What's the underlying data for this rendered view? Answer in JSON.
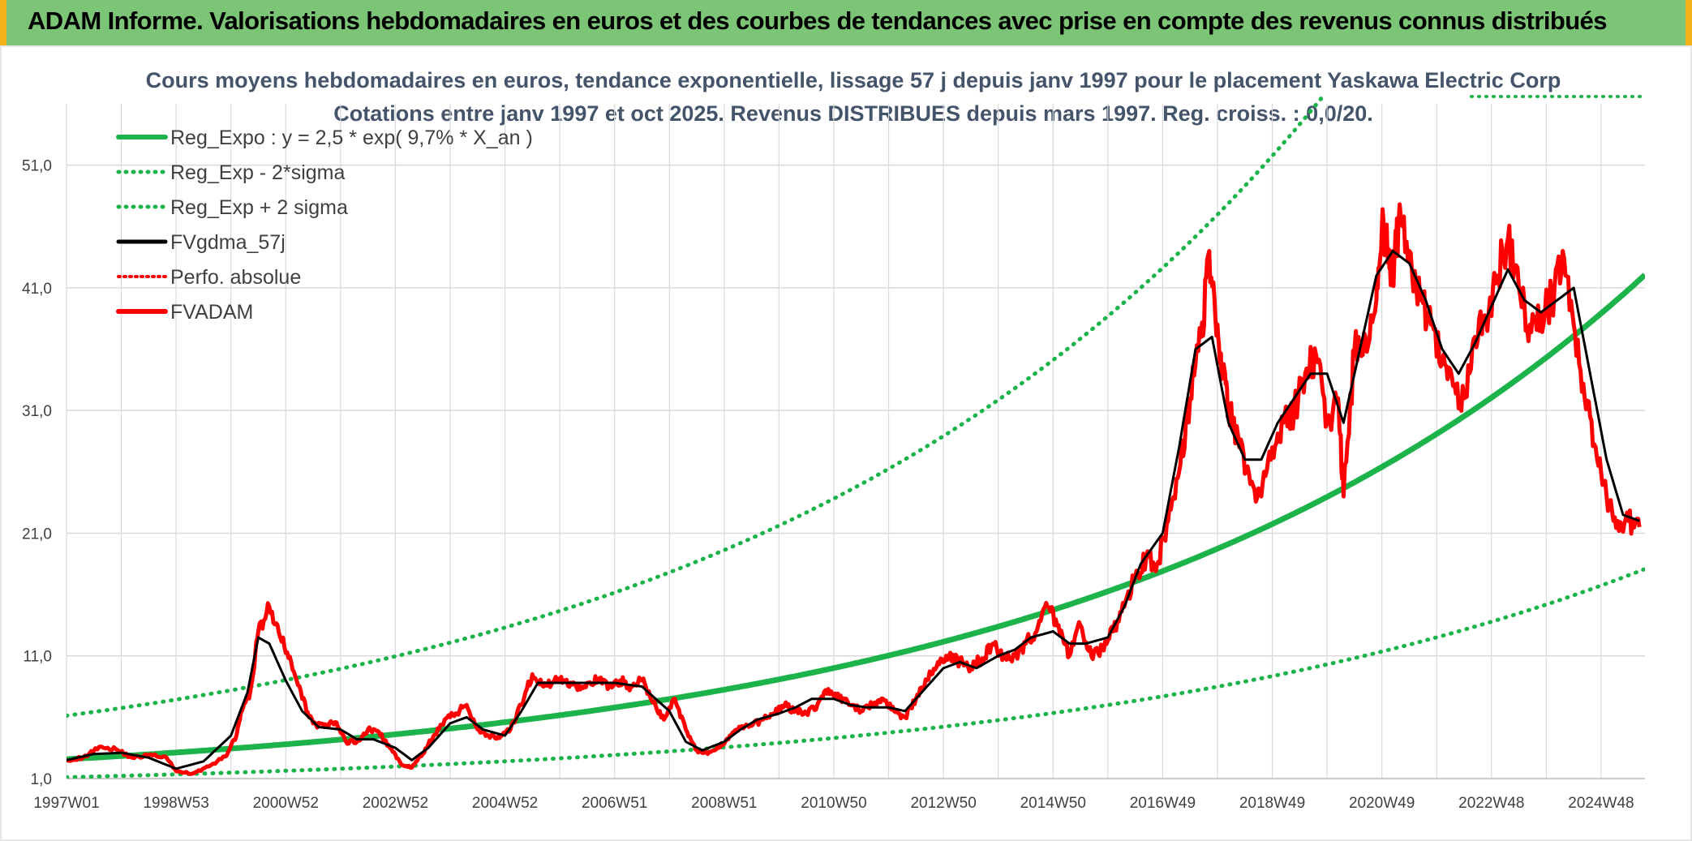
{
  "header": {
    "title": "ADAM Informe. Valorisations hebdomadaires en euros et des courbes de tendances avec prise en compte des revenus connus distribués"
  },
  "colors": {
    "banner": "#7cc576",
    "trend": "#1db34b",
    "band": "#1db34b",
    "smooth": "#000000",
    "price": "#ff0000",
    "title": "#44546a",
    "grid": "#d9d9d9"
  },
  "chart_data": {
    "type": "line",
    "title_lines": [
      "Cours moyens hebdomadaires en euros, tendance exponentielle, lissage 57 j depuis janv 1997 pour le placement Yaskawa Electric Corp",
      "Cotations entre janv 1997 et oct 2025. Revenus DISTRIBUES depuis mars 1997. Reg. croiss. : 0,0/20."
    ],
    "y_ticks": [
      "1,0",
      "11,0",
      "21,0",
      "31,0",
      "41,0",
      "51,0"
    ],
    "ylim": [
      1,
      56
    ],
    "x_ticks": [
      "1997W01",
      "1998W53",
      "2000W52",
      "2002W52",
      "2004W52",
      "2006W51",
      "2008W51",
      "2010W50",
      "2012W50",
      "2014W50",
      "2016W49",
      "2018W49",
      "2020W49",
      "2022W48",
      "2024W48"
    ],
    "x_range_years": [
      1997.0,
      2025.8
    ],
    "x_tick_years": [
      1997.0,
      1999.0,
      2001.0,
      2003.0,
      2005.0,
      2007.0,
      2009.0,
      2011.0,
      2013.0,
      2015.0,
      2017.0,
      2019.0,
      2021.0,
      2023.0,
      2025.0
    ],
    "legend": [
      {
        "label": "Reg_Expo : y = 2,5 * exp( 9,7% *  X_an )",
        "style": "solid-green"
      },
      {
        "label": "Reg_Exp - 2*sigma",
        "style": "dotted-green"
      },
      {
        "label": "Reg_Exp + 2 sigma",
        "style": "dotted-green"
      },
      {
        "label": "FVgdma_57j",
        "style": "solid-black"
      },
      {
        "label": "Perfo. absolue",
        "style": "dotted-red"
      },
      {
        "label": "FVADAM",
        "style": "solid-red"
      }
    ],
    "grid": true,
    "regression": {
      "a": 2.5,
      "rate": 0.097,
      "minus_2sigma_factor": 0.43,
      "plus_2sigma_factor": 2.38
    },
    "series": [
      {
        "name": "FVADAM",
        "x": [
          1997.0,
          1997.3,
          1997.6,
          1997.9,
          1998.2,
          1998.5,
          1998.8,
          1999.0,
          1999.3,
          1999.6,
          1999.9,
          2000.1,
          2000.2,
          2000.35,
          2000.5,
          2000.7,
          2000.9,
          2001.1,
          2001.3,
          2001.5,
          2001.7,
          2001.9,
          2002.1,
          2002.3,
          2002.5,
          2002.7,
          2002.9,
          2003.1,
          2003.3,
          2003.5,
          2003.7,
          2003.9,
          2004.1,
          2004.3,
          2004.5,
          2004.7,
          2004.9,
          2005.1,
          2005.3,
          2005.5,
          2005.7,
          2005.9,
          2006.1,
          2006.3,
          2006.5,
          2006.7,
          2006.9,
          2007.1,
          2007.3,
          2007.5,
          2007.7,
          2007.9,
          2008.1,
          2008.3,
          2008.5,
          2008.7,
          2008.9,
          2009.1,
          2009.3,
          2009.5,
          2009.7,
          2009.9,
          2010.1,
          2010.3,
          2010.5,
          2010.7,
          2010.9,
          2011.1,
          2011.3,
          2011.5,
          2011.7,
          2011.9,
          2012.1,
          2012.3,
          2012.5,
          2012.7,
          2012.9,
          2013.1,
          2013.3,
          2013.5,
          2013.7,
          2013.9,
          2014.1,
          2014.3,
          2014.5,
          2014.7,
          2014.9,
          2015.1,
          2015.3,
          2015.5,
          2015.7,
          2015.9,
          2016.1,
          2016.3,
          2016.5,
          2016.7,
          2016.9,
          2017.1,
          2017.3,
          2017.5,
          2017.7,
          2017.85,
          2018.0,
          2018.1,
          2018.2,
          2018.4,
          2018.6,
          2018.8,
          2019.0,
          2019.2,
          2019.4,
          2019.6,
          2019.8,
          2020.0,
          2020.2,
          2020.3,
          2020.5,
          2020.7,
          2020.9,
          2021.0,
          2021.1,
          2021.2,
          2021.3,
          2021.5,
          2021.7,
          2021.9,
          2022.1,
          2022.3,
          2022.5,
          2022.7,
          2022.9,
          2023.1,
          2023.3,
          2023.5,
          2023.7,
          2023.9,
          2024.1,
          2024.3,
          2024.5,
          2024.7,
          2024.9,
          2025.1,
          2025.3,
          2025.5,
          2025.7
        ],
        "y": [
          2.5,
          2.7,
          3.6,
          3.4,
          2.7,
          2.9,
          2.8,
          1.6,
          1.4,
          2.0,
          2.8,
          4.5,
          6.5,
          8.0,
          13.0,
          15.0,
          12.5,
          10.5,
          7.5,
          5.5,
          5.2,
          5.6,
          4.0,
          4.0,
          5.0,
          4.8,
          3.5,
          2.2,
          1.9,
          3.0,
          4.5,
          5.8,
          6.3,
          7.0,
          5.0,
          4.5,
          4.3,
          5.0,
          7.0,
          9.5,
          8.5,
          9.0,
          9.0,
          8.5,
          8.8,
          9.0,
          8.5,
          9.0,
          8.5,
          9.0,
          7.2,
          5.8,
          7.5,
          5.0,
          3.3,
          3.0,
          3.5,
          4.5,
          5.2,
          5.3,
          5.8,
          6.3,
          7.0,
          6.5,
          6.3,
          7.0,
          8.3,
          7.5,
          7.0,
          6.5,
          7.0,
          7.5,
          6.5,
          6.0,
          7.5,
          9.0,
          10.5,
          11.0,
          10.5,
          10.0,
          10.8,
          12.0,
          11.0,
          11.0,
          12.0,
          13.0,
          15.0,
          13.5,
          11.0,
          13.5,
          11.0,
          11.5,
          13.0,
          15.0,
          17.5,
          19.0,
          18.5,
          22.0,
          26.0,
          32.0,
          37.0,
          44.0,
          38.0,
          34.0,
          31.0,
          28.0,
          25.0,
          24.0,
          28.0,
          30.0,
          31.0,
          34.0,
          35.5,
          30.0,
          32.0,
          24.0,
          36.0,
          37.0,
          40.0,
          46.0,
          44.0,
          42.0,
          46.0,
          44.0,
          40.0,
          38.0,
          35.0,
          33.0,
          32.0,
          37.0,
          38.5,
          42.0,
          45.0,
          41.0,
          38.0,
          39.0,
          40.0,
          44.0,
          38.0,
          32.0,
          28.0,
          24.0,
          22.0,
          22.0,
          21.5
        ]
      },
      {
        "name": "FVgdma_57j",
        "x": [
          1997.0,
          1997.5,
          1998.0,
          1998.5,
          1999.0,
          1999.5,
          2000.0,
          2000.3,
          2000.5,
          2000.7,
          2001.0,
          2001.3,
          2001.6,
          2002.0,
          2002.3,
          2002.6,
          2003.0,
          2003.3,
          2003.6,
          2004.0,
          2004.3,
          2004.6,
          2005.0,
          2005.3,
          2005.6,
          2006.0,
          2006.5,
          2007.0,
          2007.5,
          2008.0,
          2008.3,
          2008.6,
          2009.0,
          2009.3,
          2009.6,
          2010.0,
          2010.3,
          2010.6,
          2011.0,
          2011.3,
          2011.6,
          2012.0,
          2012.3,
          2012.6,
          2013.0,
          2013.3,
          2013.6,
          2014.0,
          2014.3,
          2014.6,
          2015.0,
          2015.3,
          2015.6,
          2016.0,
          2016.3,
          2016.6,
          2017.0,
          2017.3,
          2017.6,
          2017.9,
          2018.2,
          2018.5,
          2018.8,
          2019.1,
          2019.4,
          2019.7,
          2020.0,
          2020.3,
          2020.6,
          2020.9,
          2021.2,
          2021.5,
          2021.8,
          2022.1,
          2022.4,
          2022.7,
          2023.0,
          2023.3,
          2023.6,
          2023.9,
          2024.2,
          2024.5,
          2024.8,
          2025.1,
          2025.4,
          2025.7
        ],
        "y": [
          2.5,
          3.0,
          3.1,
          2.7,
          1.8,
          2.4,
          4.5,
          8.0,
          12.5,
          12.0,
          9.0,
          6.5,
          5.2,
          5.0,
          4.2,
          4.2,
          3.5,
          2.5,
          3.5,
          5.5,
          6.0,
          5.0,
          4.5,
          6.5,
          8.8,
          8.8,
          8.8,
          8.8,
          8.5,
          6.5,
          4.0,
          3.3,
          4.0,
          5.0,
          5.8,
          6.3,
          6.8,
          7.5,
          7.5,
          7.0,
          6.8,
          6.8,
          6.5,
          8.0,
          10.0,
          10.5,
          10.0,
          11.0,
          11.5,
          12.5,
          13.0,
          12.0,
          12.0,
          12.5,
          15.0,
          18.5,
          21.0,
          28.0,
          36.0,
          37.0,
          30.0,
          27.0,
          27.0,
          30.0,
          32.0,
          34.0,
          34.0,
          30.0,
          36.0,
          42.0,
          44.0,
          43.0,
          40.0,
          36.0,
          34.0,
          36.5,
          39.5,
          42.5,
          40.0,
          39.0,
          40.0,
          41.0,
          34.0,
          27.0,
          22.5,
          22.0
        ]
      }
    ]
  }
}
